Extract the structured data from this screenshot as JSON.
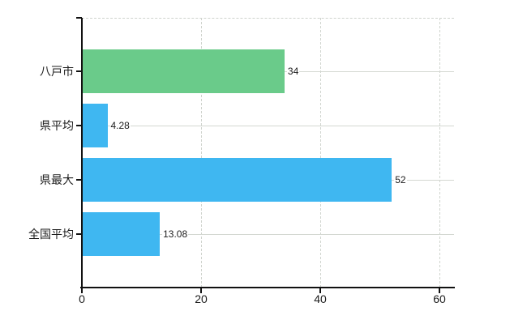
{
  "chart_data": {
    "type": "bar",
    "orientation": "horizontal",
    "title": "",
    "categories": [
      "八戸市",
      "県平均",
      "県最大",
      "全国平均"
    ],
    "values": [
      34,
      4.28,
      52,
      13.08
    ],
    "value_labels": [
      "34",
      "4.28",
      "52",
      "13.08"
    ],
    "bar_colors": [
      "#6acb8a",
      "#3fb7f1",
      "#3fb7f1",
      "#3fb7f1"
    ],
    "x_tick_labels": [
      "0",
      "20",
      "40",
      "60"
    ],
    "x_tick_values": [
      0,
      20,
      40,
      60
    ],
    "xlim": [
      0,
      62.4
    ],
    "ylabel": "",
    "xlabel": "",
    "legend": null,
    "grid": {
      "vertical": "dashed",
      "horizontal": "solid",
      "top_border": "dashed"
    }
  },
  "colors": {
    "green_bar": "#6acb8a",
    "blue_bar": "#3fb7f1",
    "gridline": "#d4d8d2",
    "axis": "#111111",
    "text": "#1c1c1c",
    "background": "#ffffff"
  }
}
